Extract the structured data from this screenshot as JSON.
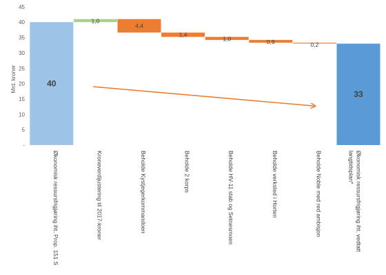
{
  "chart_data": {
    "type": "waterfall",
    "ylabel": "Mrd. kroner",
    "ylim": [
      0,
      45
    ],
    "yticks": [
      "-",
      "5",
      "10",
      "15",
      "20",
      "25",
      "30",
      "35",
      "40",
      "45"
    ],
    "grid": false,
    "categories": [
      "Økonomisk ressursfrigjøring iht. Prop. 151 S",
      "Kroneverdijustering til 2017-kroner",
      "Beholde Kystjegerkommandoen",
      "Beholde 2 korps",
      "Beholde HV-11 stab og Setnesmoen",
      "Beholde verksted i Horten",
      "Beholde Noble med red ambisjon",
      "Økonomisk ressursfrigjøring iht. vedtatt langtidsplan*"
    ],
    "category_lines": [
      [
        "Økonomisk ressursfrigjøring iht. Prop. 151 S"
      ],
      [
        "Kroneverdijustering til 2017-kroner"
      ],
      [
        "Beholde Kystjegerkommandoen"
      ],
      [
        "Beholde 2 korps"
      ],
      [
        "Beholde HV-11 stab og Setnesmoen"
      ],
      [
        "Beholde verksted i Horten"
      ],
      [
        "Beholde Noble med red ambisjon"
      ],
      [
        "Økonomisk ressursfrigjøring iht. vedtatt",
        "langtidsplan*"
      ]
    ],
    "bars": [
      {
        "kind": "total",
        "start": 0,
        "end": 40,
        "value": 40,
        "label": "40",
        "color": "#9dc3e6"
      },
      {
        "kind": "increase",
        "start": 40,
        "end": 41,
        "value": 1.0,
        "label": "1,0",
        "color": "#a9d08e"
      },
      {
        "kind": "decrease",
        "start": 41,
        "end": 36.6,
        "value": -4.4,
        "label": "4,4",
        "color": "#ed7d31"
      },
      {
        "kind": "decrease",
        "start": 36.6,
        "end": 35.2,
        "value": -1.4,
        "label": "1,4",
        "color": "#ed7d31"
      },
      {
        "kind": "decrease",
        "start": 35.2,
        "end": 34.2,
        "value": -1.0,
        "label": "1,0",
        "color": "#ed7d31"
      },
      {
        "kind": "decrease",
        "start": 34.2,
        "end": 33.3,
        "value": -0.9,
        "label": "0,9",
        "color": "#ed7d31"
      },
      {
        "kind": "decrease",
        "start": 33.3,
        "end": 33.1,
        "value": -0.2,
        "label": "0,2",
        "color": "#ed7d31"
      },
      {
        "kind": "total",
        "start": 0,
        "end": 33,
        "value": 33,
        "label": "33",
        "color": "#5b9bd5"
      }
    ],
    "trend_arrow": {
      "from": [
        1,
        19
      ],
      "to": [
        6,
        12.7
      ],
      "color": "#ed7d31"
    }
  }
}
